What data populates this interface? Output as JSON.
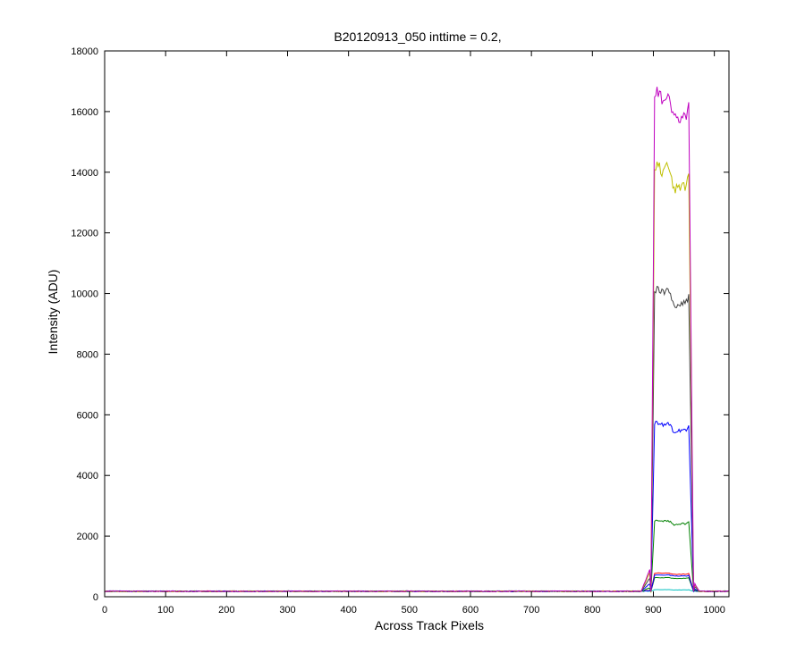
{
  "chart_data": {
    "type": "line",
    "title": "B20120913_050 inttime = 0.2,",
    "xlabel": "Across Track Pixels",
    "ylabel": "Intensity (ADU)",
    "xlim": [
      0,
      1024
    ],
    "ylim": [
      0,
      18000
    ],
    "xticks": [
      0,
      100,
      200,
      300,
      400,
      500,
      600,
      700,
      800,
      900,
      1000
    ],
    "yticks": [
      0,
      2000,
      4000,
      6000,
      8000,
      10000,
      12000,
      14000,
      16000,
      18000
    ],
    "grid": false,
    "baseline": 180,
    "plateau_range": [
      900,
      960
    ],
    "series": [
      {
        "color": "#00bfbf",
        "plateau": 230
      },
      {
        "color": "#008000",
        "plateau": 620
      },
      {
        "color": "#ff0000",
        "plateau": 760
      },
      {
        "color": "#0000ff",
        "plateau": 700
      },
      {
        "color": "#008000",
        "plateau": 2450
      },
      {
        "color": "#0000ff",
        "plateau": 5600
      },
      {
        "color": "#404040",
        "plateau": 9900
      },
      {
        "color": "#bfbf00",
        "plateau": 13850
      },
      {
        "color": "#bf00bf",
        "plateau": 16200
      }
    ]
  }
}
